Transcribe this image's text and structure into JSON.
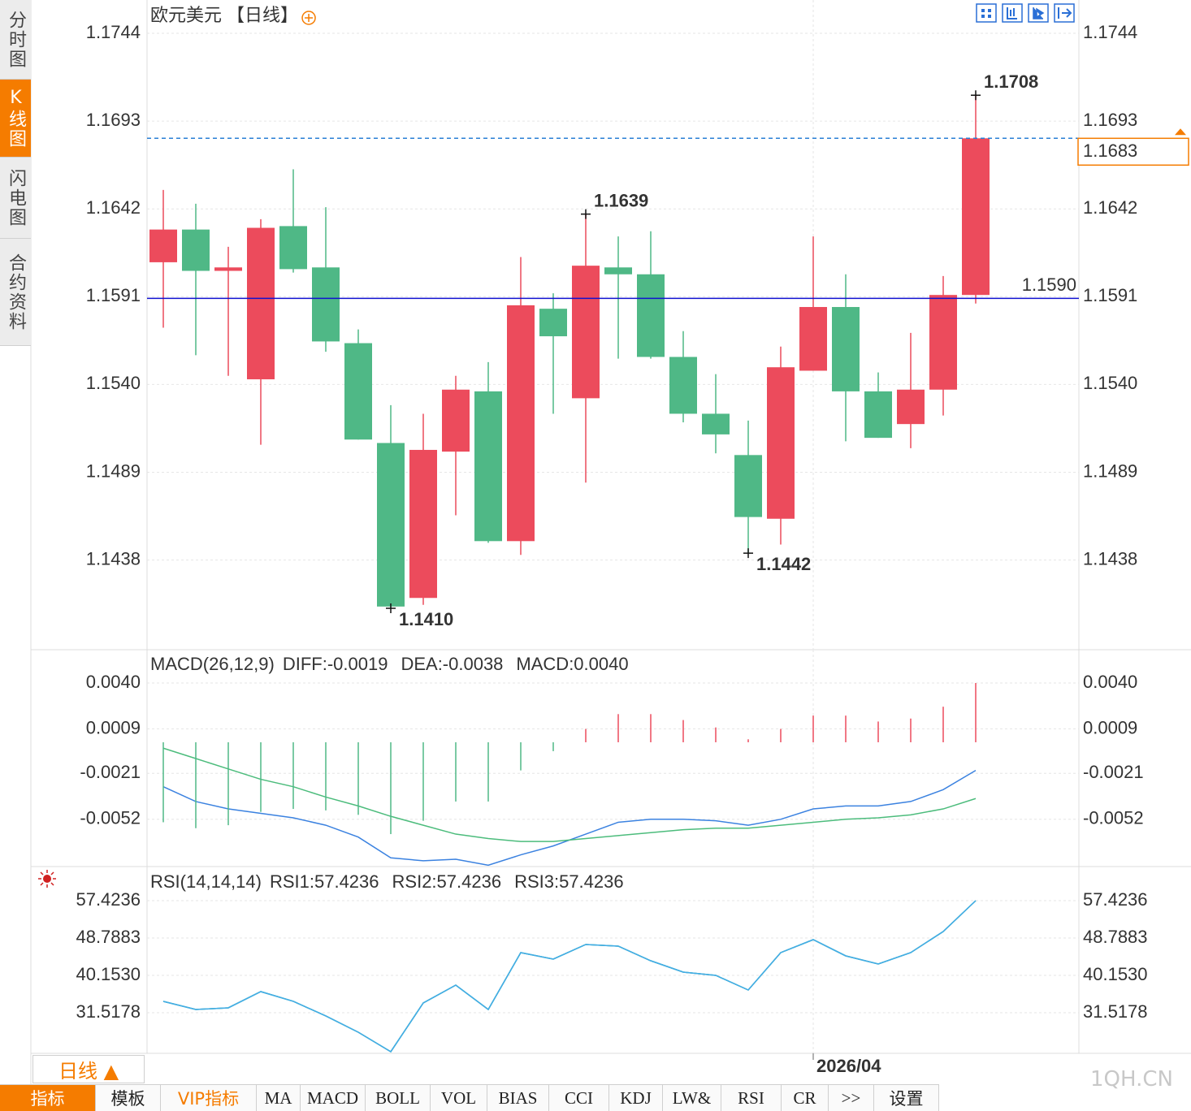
{
  "sidebar_tabs": [
    "分时图",
    "K线图",
    "闪电图",
    "合约资料"
  ],
  "chart_data": [
    {
      "type": "candlestick",
      "title": "欧元美元",
      "subtitle": "【日线】",
      "categories": [
        null,
        null,
        null,
        null,
        null,
        null,
        null,
        null,
        null,
        null,
        null,
        null,
        null,
        null,
        null,
        null,
        null,
        null,
        null,
        null,
        "2026/04",
        null,
        null,
        null,
        null,
        null
      ],
      "series": {
        "open": [
          1.1611,
          1.163,
          1.1606,
          1.1543,
          1.1632,
          1.1608,
          1.1564,
          1.1506,
          1.1416,
          1.1501,
          1.1536,
          1.1449,
          1.1584,
          1.1532,
          1.1608,
          1.1604,
          1.1556,
          1.1523,
          1.1499,
          1.1462,
          1.1548,
          1.1585,
          1.1536,
          1.1517,
          1.1537,
          1.1592
        ],
        "high": [
          1.1653,
          1.1645,
          1.162,
          1.1636,
          1.1665,
          1.1643,
          1.1572,
          1.1528,
          1.1523,
          1.1545,
          1.1553,
          1.1614,
          1.1593,
          1.1639,
          1.1626,
          1.1629,
          1.1571,
          1.1546,
          1.1519,
          1.1562,
          1.1626,
          1.1604,
          1.1547,
          1.157,
          1.1603,
          1.1708
        ],
        "low": [
          1.1573,
          1.1557,
          1.1545,
          1.1505,
          1.1605,
          1.1559,
          1.1508,
          1.141,
          1.1412,
          1.1464,
          1.1448,
          1.1441,
          1.1523,
          1.1483,
          1.1555,
          1.1555,
          1.1518,
          1.15,
          1.1442,
          1.1447,
          1.1548,
          1.1507,
          1.1509,
          1.1503,
          1.1522,
          1.1587
        ],
        "close": [
          1.163,
          1.1606,
          1.1608,
          1.1631,
          1.1607,
          1.1565,
          1.1508,
          1.1411,
          1.1502,
          1.1537,
          1.1449,
          1.1586,
          1.1568,
          1.1609,
          1.1604,
          1.1556,
          1.1523,
          1.1511,
          1.1463,
          1.155,
          1.1585,
          1.1536,
          1.1509,
          1.1537,
          1.1592,
          1.1683
        ]
      },
      "up_color": "#ec4b5c",
      "down_color": "#4fb886",
      "ylim": [
        1.1393,
        1.1744
      ],
      "yticks": [
        1.1744,
        1.1693,
        1.1642,
        1.1591,
        {
          "value": 1.154,
          "label": "1.1540"
        },
        1.1489,
        1.1438
      ],
      "grid": true,
      "annotations": [
        {
          "value": 1.1708,
          "label": "1.1708"
        },
        {
          "value": 1.1639,
          "label": "1.1639"
        },
        {
          "value": 1.141,
          "label": "1.1410"
        },
        {
          "value": 1.1442,
          "label": "1.1442"
        }
      ],
      "last_price": {
        "value": 1.1683,
        "label": "1.1683",
        "color": "#f57c00"
      },
      "price_line": {
        "value": 1.159,
        "label": "1.1590",
        "color": "#1010d0"
      }
    },
    {
      "type": "macd",
      "title": "MACD(26,12,9)",
      "series": [
        {
          "name": "DIFF:-0.0019",
          "color": "#3b82e0",
          "values": [
            -0.003,
            -0.004,
            -0.0045,
            -0.0048,
            -0.0051,
            -0.0056,
            -0.0064,
            -0.0078,
            -0.008,
            -0.0079,
            -0.0083,
            -0.0076,
            -0.007,
            -0.0062,
            -0.0054,
            -0.0052,
            -0.0052,
            -0.0053,
            -0.0056,
            -0.0052,
            -0.0045,
            -0.0043,
            -0.0043,
            -0.004,
            -0.0032,
            -0.0019
          ]
        },
        {
          "name": "DEA:-0.0038",
          "color": "#4cbc7c",
          "values": [
            -0.0004,
            -0.0011,
            -0.0018,
            -0.0025,
            -0.003,
            -0.0037,
            -0.0043,
            -0.005,
            -0.0056,
            -0.0062,
            -0.0065,
            -0.0067,
            -0.0067,
            -0.0065,
            -0.0063,
            -0.0061,
            -0.0059,
            -0.0058,
            -0.0058,
            -0.0056,
            -0.0054,
            -0.0052,
            -0.0051,
            -0.0049,
            -0.0045,
            -0.0038
          ]
        },
        {
          "name": "MACD:0.0040",
          "color": "#5ab6f0",
          "up_color": "#ec4b5c",
          "down_color": "#4fb886",
          "values": [
            -0.0054,
            -0.0058,
            -0.0056,
            -0.0047,
            -0.0045,
            -0.0046,
            -0.0049,
            -0.0062,
            -0.0053,
            -0.004,
            -0.004,
            -0.0019,
            -0.0006,
            0.0009,
            0.0019,
            0.0019,
            0.0015,
            0.001,
            0.0002,
            0.0009,
            0.0018,
            0.0018,
            0.0014,
            0.0016,
            0.0024,
            0.004
          ]
        }
      ],
      "ylim": [
        -0.0085,
        0.004
      ],
      "yticks": [
        {
          "value": 0.004,
          "label": "0.0040"
        },
        0.0009,
        -0.0021,
        -0.0052
      ],
      "grid": true
    },
    {
      "type": "line",
      "title": "RSI(14,14,14)",
      "series": [
        {
          "name": "RSI1:57.4236",
          "color": "#4aa3ec",
          "values": [
            34.15,
            32.27,
            32.65,
            36.4,
            34.15,
            30.77,
            27.01,
            22.51,
            33.77,
            37.9,
            32.27,
            45.41,
            43.91,
            47.29,
            46.91,
            43.53,
            40.9,
            40.15,
            36.77,
            45.41,
            48.41,
            44.66,
            42.78,
            45.41,
            50.29,
            57.4236
          ]
        },
        {
          "name": "RSI2:57.4236",
          "color": "#5cc88a",
          "values": [
            34.15,
            32.27,
            32.65,
            36.4,
            34.15,
            30.77,
            27.01,
            22.51,
            33.77,
            37.9,
            32.27,
            45.41,
            43.91,
            47.29,
            46.91,
            43.53,
            40.9,
            40.15,
            36.77,
            45.41,
            48.41,
            44.66,
            42.78,
            45.41,
            50.29,
            57.4236
          ]
        },
        {
          "name": "RSI3:57.4236",
          "color": "#42ace8",
          "values": [
            34.15,
            32.27,
            32.65,
            36.4,
            34.15,
            30.77,
            27.01,
            22.51,
            33.77,
            37.9,
            32.27,
            45.41,
            43.91,
            47.29,
            46.91,
            43.53,
            40.9,
            40.15,
            36.77,
            45.41,
            48.41,
            44.66,
            42.78,
            45.41,
            50.29,
            57.4236
          ]
        }
      ],
      "ylim": [
        21,
        57.4236
      ],
      "yticks": [
        57.4236,
        48.7883,
        {
          "value": 40.153,
          "label": "40.1530"
        },
        31.5178
      ],
      "grid": true
    }
  ],
  "bottom_bar": {
    "period": "日线 ▲",
    "tabs": [
      "指标",
      "模板",
      "VIP指标",
      "MA",
      "MACD",
      "BOLL",
      "VOL",
      "BIAS",
      "CCI",
      "KDJ",
      "LW&",
      "RSI",
      "CR",
      ">>",
      "设置"
    ]
  },
  "watermark": "1QH.CN"
}
